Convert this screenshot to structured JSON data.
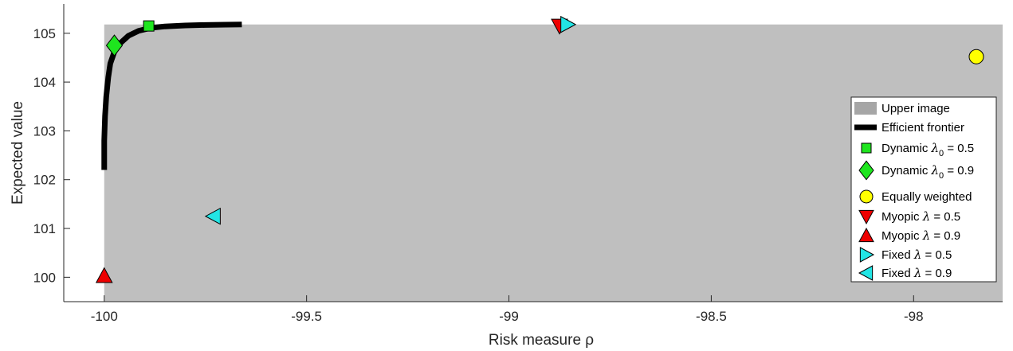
{
  "chart_data": {
    "type": "scatter",
    "xlabel": "Risk measure ρ",
    "ylabel": "Expected value",
    "xlim": [
      -100.1,
      -97.78
    ],
    "ylim": [
      99.5,
      105.6
    ],
    "xticks": [
      -100,
      -99.5,
      -99,
      -98.5,
      -98
    ],
    "xtick_labels": [
      "-100",
      "-99.5",
      "-99",
      "-98.5",
      "-98"
    ],
    "yticks": [
      100,
      101,
      102,
      103,
      104,
      105
    ],
    "ytick_labels": [
      "100",
      "101",
      "102",
      "103",
      "104",
      "105"
    ],
    "grid": false,
    "legend_position": "right",
    "upper_image": {
      "name": "Upper image",
      "color": "#bfbfbf",
      "legend_color": "#a6a6a6",
      "x_min": -100,
      "y_max": 105.18
    },
    "efficient_frontier": {
      "name": "Efficient frontier",
      "color": "#000000",
      "x": [
        -100.0,
        -100.0,
        -99.998,
        -99.995,
        -99.99,
        -99.985,
        -99.975,
        -99.96,
        -99.94,
        -99.915,
        -99.885,
        -99.85,
        -99.8,
        -99.75,
        -99.7,
        -99.66
      ],
      "y": [
        102.2,
        102.8,
        103.3,
        103.7,
        104.1,
        104.38,
        104.62,
        104.8,
        104.95,
        105.05,
        105.11,
        105.14,
        105.16,
        105.17,
        105.175,
        105.18
      ]
    },
    "series": [
      {
        "name": "Dynamic",
        "lambda_label": "λ",
        "subscript": "0",
        "suffix": " = 0.5",
        "marker": "square",
        "color": "#1ee51e",
        "x": -99.89,
        "y": 105.15
      },
      {
        "name": "Dynamic",
        "lambda_label": "λ",
        "subscript": "0",
        "suffix": " = 0.9",
        "marker": "diamond",
        "color": "#1ee51e",
        "x": -99.975,
        "y": 104.75
      },
      {
        "name": "Equally weighted",
        "marker": "circle",
        "color": "#ffff00",
        "x": -97.845,
        "y": 104.52
      },
      {
        "name": "Myopic",
        "lambda_label": "λ",
        "suffix": " = 0.5",
        "marker": "triangle-down",
        "color": "#ee0000",
        "x": -98.875,
        "y": 105.15
      },
      {
        "name": "Myopic",
        "lambda_label": "λ",
        "suffix": " = 0.9",
        "marker": "triangle-up",
        "color": "#ee0000",
        "x": -100.0,
        "y": 100.03
      },
      {
        "name": "Fixed",
        "lambda_label": "λ",
        "suffix": " = 0.5",
        "marker": "triangle-right",
        "color": "#22e5e5",
        "x": -98.855,
        "y": 105.18
      },
      {
        "name": "Fixed",
        "lambda_label": "λ",
        "suffix": " = 0.9",
        "marker": "triangle-left",
        "color": "#22e5e5",
        "x": -99.73,
        "y": 101.25
      }
    ]
  }
}
